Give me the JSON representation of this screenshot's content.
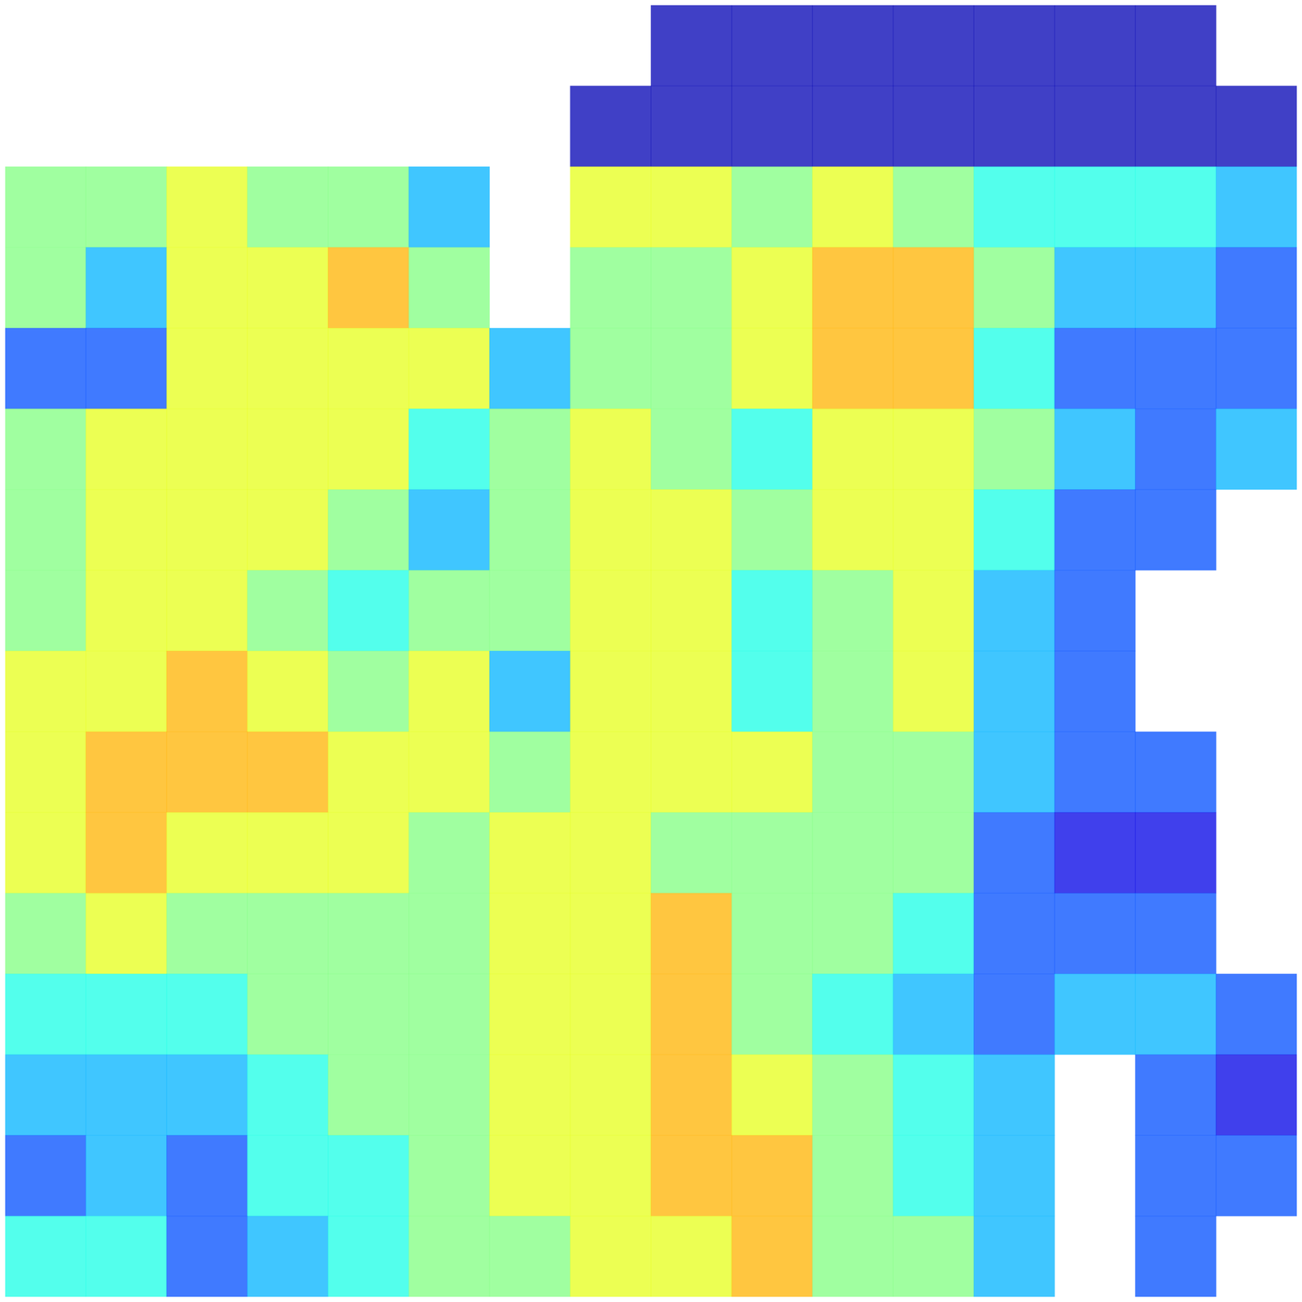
{
  "chart_data": {
    "type": "heatmap",
    "clim": [
      0,
      1
    ],
    "tick_labels": false,
    "grid": false,
    "cells": [
      [
        null,
        null,
        null,
        null,
        null,
        null,
        null,
        null,
        0.05,
        0.05,
        0.05,
        0.05,
        0.05,
        0.05,
        0.05,
        null
      ],
      [
        null,
        null,
        null,
        null,
        null,
        null,
        null,
        0.05,
        0.05,
        0.05,
        0.05,
        0.05,
        0.05,
        0.05,
        0.05,
        0.05
      ],
      [
        0.5,
        0.5,
        0.6,
        0.5,
        0.5,
        0.3,
        null,
        0.6,
        0.6,
        0.5,
        0.6,
        0.5,
        0.4,
        0.4,
        0.4,
        0.3
      ],
      [
        0.5,
        0.3,
        0.6,
        0.6,
        0.7,
        0.5,
        null,
        0.5,
        0.5,
        0.6,
        0.7,
        0.7,
        0.5,
        0.3,
        0.3,
        0.2
      ],
      [
        0.2,
        0.2,
        0.6,
        0.6,
        0.6,
        0.6,
        0.3,
        0.5,
        0.5,
        0.6,
        0.7,
        0.7,
        0.4,
        0.2,
        0.2,
        0.2
      ],
      [
        0.5,
        0.6,
        0.6,
        0.6,
        0.6,
        0.4,
        0.5,
        0.6,
        0.5,
        0.4,
        0.6,
        0.6,
        0.5,
        0.3,
        0.2,
        0.3
      ],
      [
        0.5,
        0.6,
        0.6,
        0.6,
        0.5,
        0.3,
        0.5,
        0.6,
        0.6,
        0.5,
        0.6,
        0.6,
        0.4,
        0.2,
        0.2,
        null
      ],
      [
        0.5,
        0.6,
        0.6,
        0.5,
        0.4,
        0.5,
        0.5,
        0.6,
        0.6,
        0.4,
        0.5,
        0.6,
        0.3,
        0.2,
        null,
        null
      ],
      [
        0.6,
        0.6,
        0.7,
        0.6,
        0.5,
        0.6,
        0.3,
        0.6,
        0.6,
        0.4,
        0.5,
        0.6,
        0.3,
        0.2,
        null,
        null
      ],
      [
        0.6,
        0.7,
        0.7,
        0.7,
        0.6,
        0.6,
        0.5,
        0.6,
        0.6,
        0.6,
        0.5,
        0.5,
        0.3,
        0.2,
        0.2,
        null
      ],
      [
        0.6,
        0.7,
        0.6,
        0.6,
        0.6,
        0.5,
        0.6,
        0.6,
        0.5,
        0.5,
        0.5,
        0.5,
        0.2,
        0.1,
        0.1,
        null
      ],
      [
        0.5,
        0.6,
        0.5,
        0.5,
        0.5,
        0.5,
        0.6,
        0.6,
        0.7,
        0.5,
        0.5,
        0.4,
        0.2,
        0.2,
        0.2,
        null
      ],
      [
        0.4,
        0.4,
        0.4,
        0.5,
        0.5,
        0.5,
        0.6,
        0.6,
        0.7,
        0.5,
        0.4,
        0.3,
        0.2,
        0.3,
        0.3,
        0.2
      ],
      [
        0.3,
        0.3,
        0.3,
        0.4,
        0.5,
        0.5,
        0.6,
        0.6,
        0.7,
        0.6,
        0.5,
        0.4,
        0.3,
        null,
        0.2,
        0.1
      ],
      [
        0.2,
        0.3,
        0.2,
        0.4,
        0.4,
        0.5,
        0.6,
        0.6,
        0.7,
        0.7,
        0.5,
        0.4,
        0.3,
        null,
        0.2,
        0.2
      ],
      [
        0.4,
        0.4,
        0.2,
        0.3,
        0.4,
        0.5,
        0.5,
        0.6,
        0.6,
        0.7,
        0.5,
        0.5,
        0.3,
        null,
        0.2,
        null
      ]
    ]
  }
}
